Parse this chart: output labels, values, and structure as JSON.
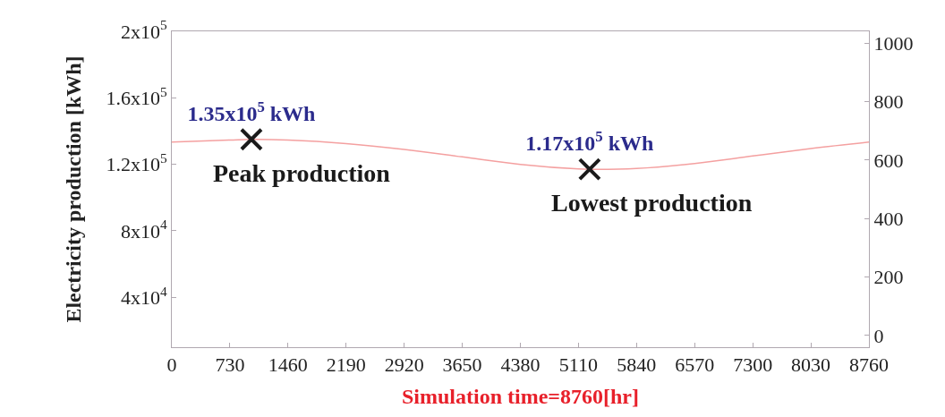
{
  "chart_data": {
    "type": "line",
    "xlabel": "Simulation time=8760[hr]",
    "ylabel": "Electricity production [kWh]",
    "x": [
      0,
      730,
      1000,
      1460,
      2190,
      2920,
      3650,
      4380,
      5110,
      5250,
      5840,
      6570,
      7300,
      8030,
      8760
    ],
    "series": [
      {
        "color": "#f4a0a0",
        "values": [
          133400,
          134600,
          135000,
          134600,
          132500,
          129000,
          124500,
          120000,
          117200,
          117000,
          117500,
          120500,
          125000,
          129500,
          133400
        ]
      },
      {
        "type": "scatter",
        "marker": "cross",
        "color": "#1a1a1a",
        "x": [
          1000,
          5250
        ],
        "values": [
          135000,
          117000
        ],
        "value_labels": [
          "1.35x10$^{5}$ kWh",
          "1.17x10$^{5}$ kWh"
        ]
      }
    ],
    "xlim": [
      0,
      8760
    ],
    "xticks": [
      0,
      730,
      1460,
      2190,
      2920,
      3650,
      4380,
      5110,
      5840,
      6570,
      7300,
      8030,
      8760
    ],
    "ylim": [
      10000,
      200000
    ],
    "yticks": [
      {
        "value": 40000,
        "label": "4x10$^{4}$"
      },
      {
        "value": 80000,
        "label": "8x10$^{4}$"
      },
      {
        "value": 120000,
        "label": "1.2x10$^{5}$"
      },
      {
        "value": 160000,
        "label": "1.6x10$^{5}$"
      },
      {
        "value": 200000,
        "label": "2x10$^{5}$"
      }
    ],
    "y2lim": [
      -40,
      1040
    ],
    "y2ticks": [
      0,
      200,
      400,
      600,
      800,
      1000
    ],
    "annotations": [
      {
        "text": "Peak production",
        "x": 1000,
        "y": 135000
      },
      {
        "text": "Lowest production",
        "x": 5250,
        "y": 117000
      }
    ],
    "grid": false
  }
}
